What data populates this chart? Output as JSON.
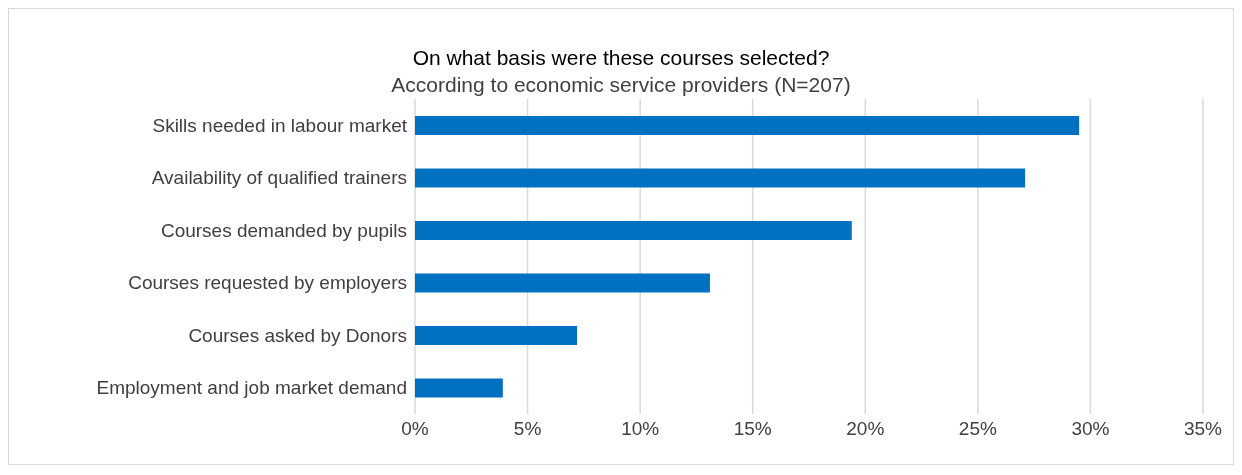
{
  "chart_data": {
    "type": "bar",
    "orientation": "horizontal",
    "title": "On what basis were these courses selected?",
    "subtitle": "According to economic service providers (N=207)",
    "categories": [
      "Skills needed in labour market",
      "Availability of qualified trainers",
      "Courses demanded by pupils",
      "Courses requested by employers",
      "Courses asked by Donors",
      "Employment and job market demand"
    ],
    "values": [
      29.5,
      27.1,
      19.4,
      13.1,
      7.2,
      3.9
    ],
    "color": "#0070c0",
    "xlim": [
      0,
      35
    ],
    "xticks": [
      {
        "value": 0,
        "label": "0%"
      },
      {
        "value": 5,
        "label": "5%"
      },
      {
        "value": 10,
        "label": "10%"
      },
      {
        "value": 15,
        "label": "15%"
      },
      {
        "value": 20,
        "label": "20%"
      },
      {
        "value": 25,
        "label": "25%"
      },
      {
        "value": 30,
        "label": "30%"
      },
      {
        "value": 35,
        "label": "35%"
      }
    ],
    "grid": "x"
  }
}
